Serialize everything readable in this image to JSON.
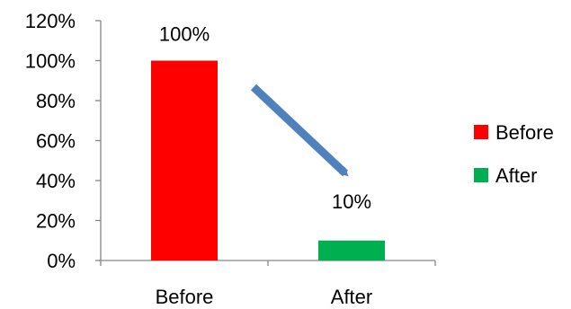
{
  "chart_data": {
    "type": "bar",
    "categories": [
      "Before",
      "After"
    ],
    "values": [
      100,
      10
    ],
    "value_labels": [
      "100%",
      "10%"
    ],
    "bar_colors": [
      "#ff0000",
      "#00b050"
    ],
    "ylim": [
      0,
      120
    ],
    "yticks": [
      0,
      20,
      40,
      60,
      80,
      100,
      120
    ],
    "ytick_labels": [
      "0%",
      "20%",
      "40%",
      "60%",
      "80%",
      "100%",
      "120%"
    ],
    "grid": false,
    "legend": {
      "position": "right",
      "entries": [
        {
          "label": "Before",
          "color": "#ff0000"
        },
        {
          "label": "After",
          "color": "#00b050"
        }
      ]
    },
    "annotation": {
      "type": "arrow",
      "from": "Before",
      "to": "After",
      "color": "#4f81bd"
    }
  }
}
